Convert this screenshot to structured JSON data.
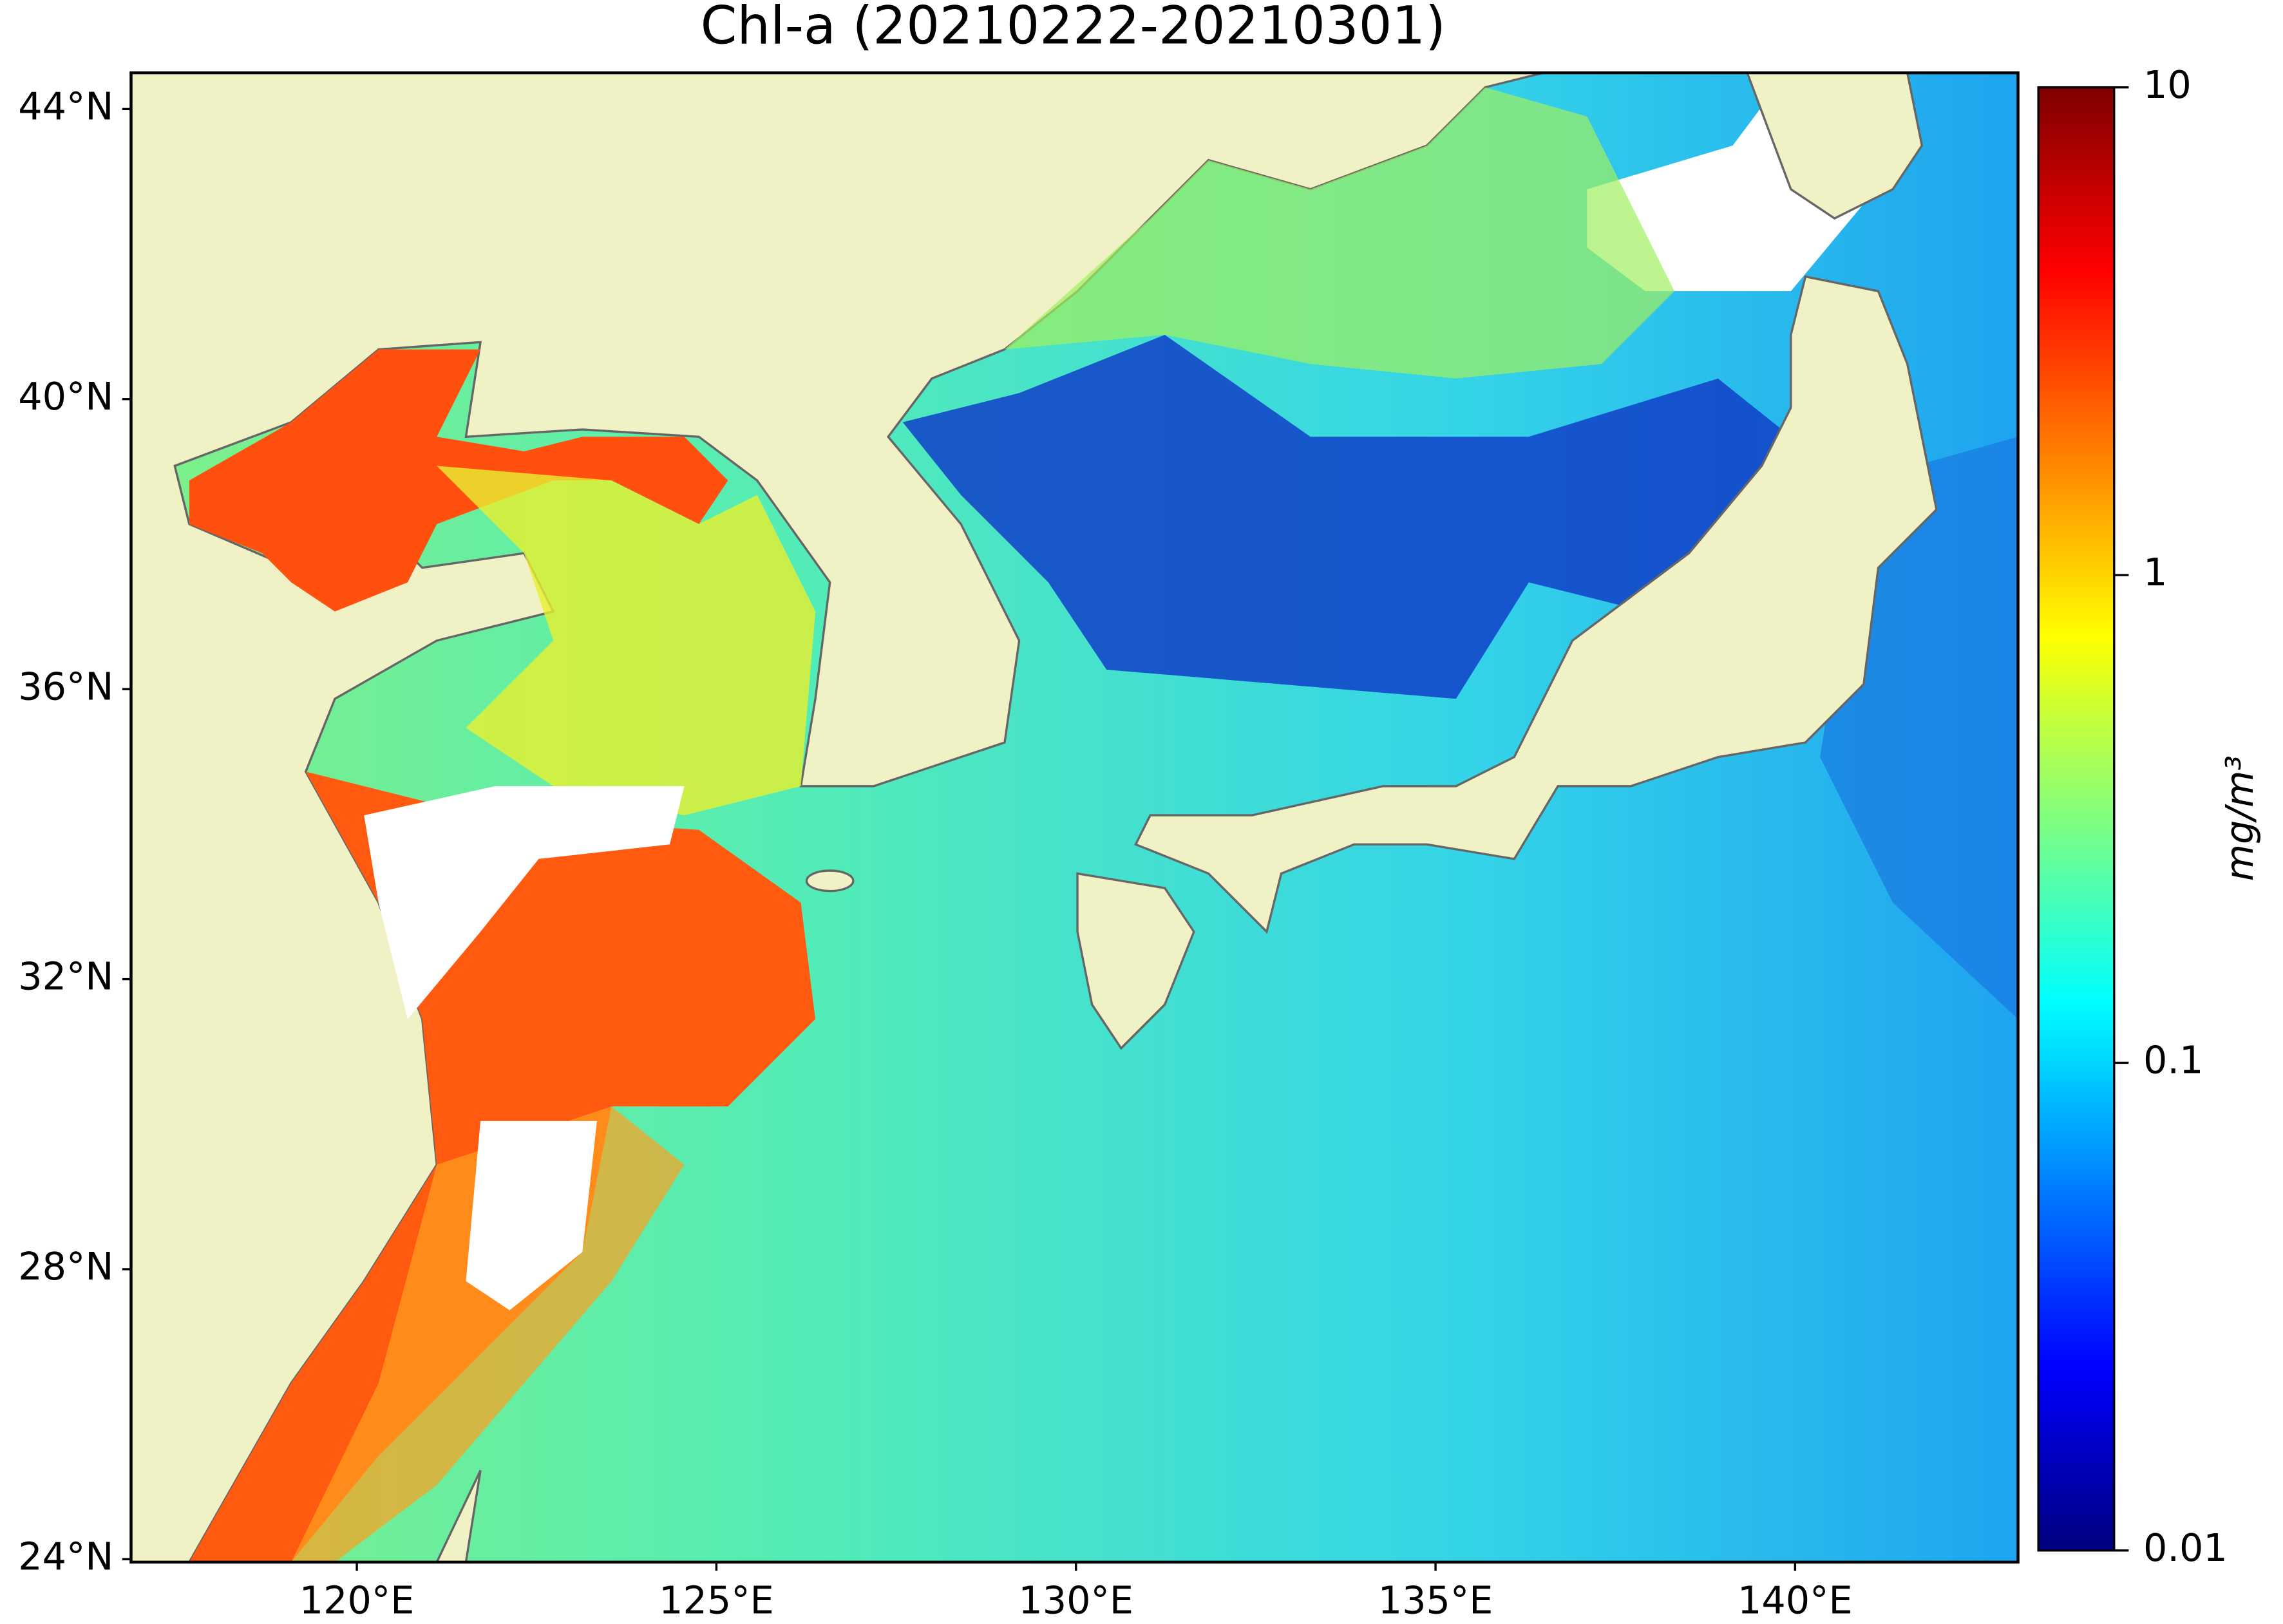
{
  "title": "Chl-a (20210222-20210301)",
  "map": {
    "xlim": [
      116.86,
      143.1
    ],
    "ylim": [
      23.96,
      44.5
    ],
    "xticks": [
      {
        "value": 120,
        "label": "120°E"
      },
      {
        "value": 125,
        "label": "125°E"
      },
      {
        "value": 130,
        "label": "130°E"
      },
      {
        "value": 135,
        "label": "135°E"
      },
      {
        "value": 140,
        "label": "140°E"
      }
    ],
    "yticks": [
      {
        "value": 24,
        "label": "24°N"
      },
      {
        "value": 28,
        "label": "28°N"
      },
      {
        "value": 32,
        "label": "32°N"
      },
      {
        "value": 36,
        "label": "36°N"
      },
      {
        "value": 40,
        "label": "40°N"
      },
      {
        "value": 44,
        "label": "44°N"
      }
    ]
  },
  "colorbar": {
    "label": "mg/m³",
    "scale": "log",
    "lim": [
      0.01,
      10
    ],
    "ticks": [
      0.01,
      0.1,
      1,
      10
    ]
  }
}
